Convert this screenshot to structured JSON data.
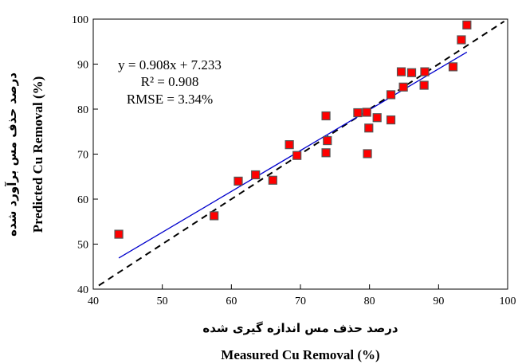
{
  "chart_data": {
    "type": "scatter",
    "xlim": [
      40,
      100
    ],
    "ylim": [
      40,
      100
    ],
    "x_ticks": [
      40,
      50,
      60,
      70,
      80,
      90,
      100
    ],
    "y_ticks": [
      40,
      50,
      60,
      70,
      80,
      90,
      100
    ],
    "x_tick_labels": [
      "40",
      "50",
      "60",
      "70",
      "80",
      "90",
      "100"
    ],
    "y_tick_labels": [
      "40",
      "50",
      "60",
      "70",
      "80",
      "90",
      "100"
    ],
    "xlabel": "Measured Cu Removal (%)",
    "xlabel_fa": "درصد حذف مس اندازه گیری شده",
    "ylabel": "Predicted Cu Removal (%)",
    "ylabel_fa": "درصد حذف مس برآورد شده",
    "grid": false,
    "marker_color": "#ff0000",
    "marker_edge_color": "#555555",
    "fit_line_color": "#0000cc",
    "identity_line_color": "#000000",
    "points": [
      {
        "x": 43.7,
        "y": 52.2
      },
      {
        "x": 57.5,
        "y": 56.3
      },
      {
        "x": 61.0,
        "y": 64.0
      },
      {
        "x": 63.5,
        "y": 65.4
      },
      {
        "x": 66.0,
        "y": 64.2
      },
      {
        "x": 68.4,
        "y": 72.1
      },
      {
        "x": 69.5,
        "y": 69.7
      },
      {
        "x": 73.7,
        "y": 78.5
      },
      {
        "x": 73.9,
        "y": 73.0
      },
      {
        "x": 73.7,
        "y": 70.3
      },
      {
        "x": 78.3,
        "y": 79.2
      },
      {
        "x": 79.6,
        "y": 79.3
      },
      {
        "x": 79.9,
        "y": 75.8
      },
      {
        "x": 79.7,
        "y": 70.1
      },
      {
        "x": 81.1,
        "y": 78.1
      },
      {
        "x": 83.1,
        "y": 77.6
      },
      {
        "x": 83.1,
        "y": 83.2
      },
      {
        "x": 84.9,
        "y": 84.9
      },
      {
        "x": 84.6,
        "y": 88.3
      },
      {
        "x": 86.1,
        "y": 88.1
      },
      {
        "x": 87.9,
        "y": 85.3
      },
      {
        "x": 88.0,
        "y": 88.3
      },
      {
        "x": 92.1,
        "y": 89.4
      },
      {
        "x": 93.3,
        "y": 95.4
      },
      {
        "x": 94.1,
        "y": 98.7
      }
    ],
    "fit": {
      "slope": 0.908,
      "intercept": 7.233,
      "x_range": [
        43.7,
        94.1
      ]
    },
    "identity_range": [
      40.8,
      99.5
    ],
    "annotations": [
      "y = 0.908x + 7.233",
      "R² = 0.908",
      "RMSE = 3.34%"
    ]
  }
}
